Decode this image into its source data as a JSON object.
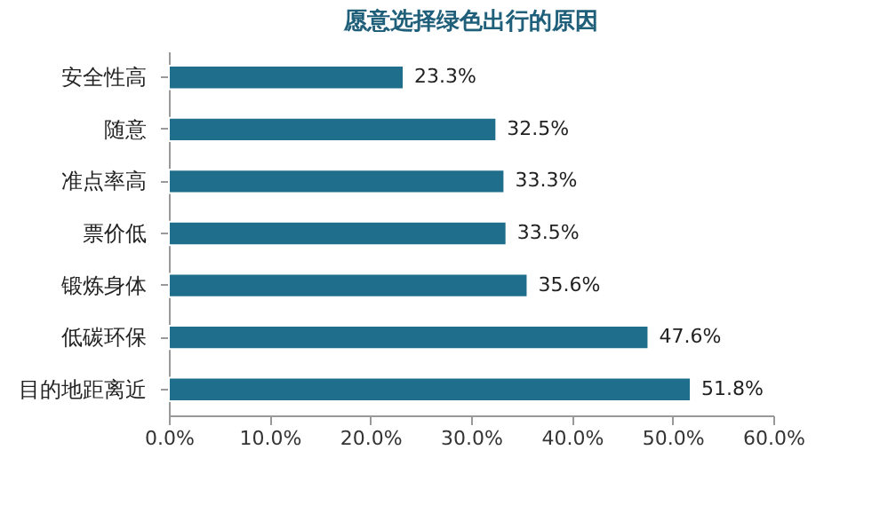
{
  "chart_data": {
    "type": "bar",
    "orientation": "horizontal",
    "title": "愿意选择绿色出行的原因",
    "categories": [
      "安全性高",
      "随意",
      "准点率高",
      "票价低",
      "锻炼身体",
      "低碳环保",
      "目的地距离近"
    ],
    "values": [
      23.3,
      32.5,
      33.3,
      33.5,
      35.6,
      47.6,
      51.8
    ],
    "value_labels": [
      "23.3%",
      "32.5%",
      "33.3%",
      "33.5%",
      "35.6%",
      "47.6%",
      "51.8%"
    ],
    "color": "#1f6e8c",
    "xlim": [
      0,
      60
    ],
    "xticks": [
      {
        "value": 0,
        "label": "0.0%"
      },
      {
        "value": 10,
        "label": "10.0%"
      },
      {
        "value": 20,
        "label": "20.0%"
      },
      {
        "value": 30,
        "label": "30.0%"
      },
      {
        "value": 40,
        "label": "40.0%"
      },
      {
        "value": 50,
        "label": "50.0%"
      },
      {
        "value": 60,
        "label": "60.0%"
      }
    ],
    "grid": false
  }
}
